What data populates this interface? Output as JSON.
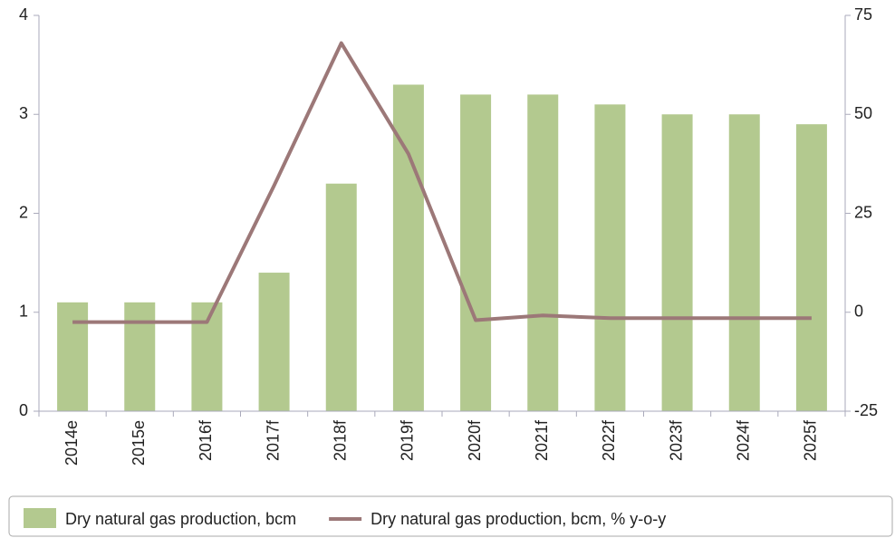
{
  "chart_data": {
    "type": "bar",
    "categories": [
      "2014e",
      "2015e",
      "2016f",
      "2017f",
      "2018f",
      "2019f",
      "2020f",
      "2021f",
      "2022f",
      "2023f",
      "2024f",
      "2025f"
    ],
    "series": [
      {
        "name": "Dry natural gas production, bcm",
        "type": "bar",
        "color": "#b3c98f",
        "values": [
          1.1,
          1.1,
          1.1,
          1.4,
          2.3,
          3.3,
          3.2,
          3.2,
          3.1,
          3.0,
          3.0,
          2.9
        ]
      },
      {
        "name": "Dry natural gas production, bcm, % y-o-y",
        "type": "line",
        "axis": "y2",
        "color": "#9c7878",
        "values": [
          -2.5,
          -2.5,
          -2.5,
          32,
          68,
          40,
          -2,
          -0.8,
          -1.5,
          -1.5,
          -1.5,
          -1.5
        ]
      }
    ],
    "ylim": [
      0,
      4
    ],
    "yticks": [
      0,
      1,
      2,
      3,
      4
    ],
    "y2lim": [
      -25,
      75
    ],
    "y2ticks": [
      -25,
      0,
      25,
      50,
      75
    ]
  }
}
